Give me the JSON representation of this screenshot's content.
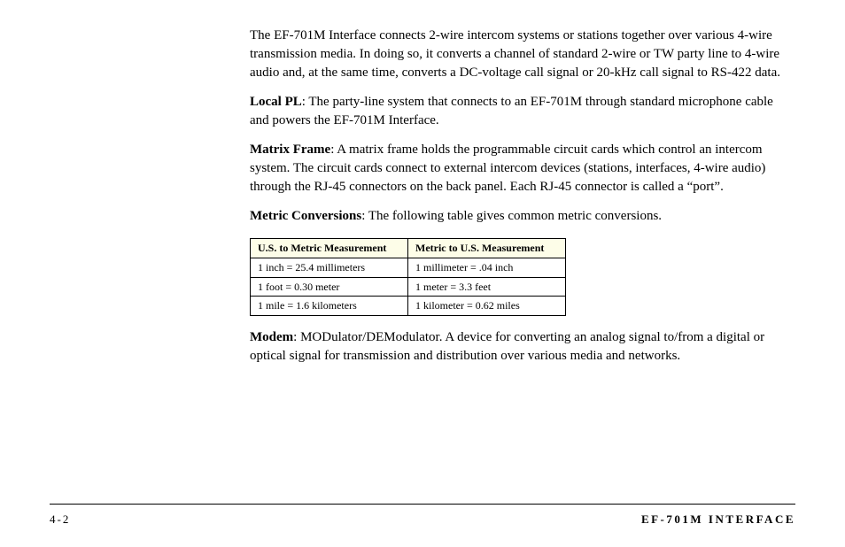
{
  "paragraphs": {
    "intro": "The EF-701M Interface connects 2-wire intercom systems or stations together over various 4-wire transmission media.  In doing so, it converts a channel of standard 2-wire or TW party line to 4-wire audio and, at the same time, converts a DC-voltage call signal or 20-kHz call signal to RS-422 data.",
    "localPL_label": "Local PL",
    "localPL_text": ": The party-line system that connects to an EF-701M through standard microphone cable and powers the EF-701M Interface.",
    "matrix_label": "Matrix Frame",
    "matrix_text": ": A matrix frame holds the programmable circuit cards which control an intercom system. The circuit cards connect to external intercom devices (stations, interfaces, 4-wire audio) through the RJ-45 connectors on the back panel. Each RJ-45 connector is called a “port”.",
    "metric_label": "Metric Conversions",
    "metric_text": ": The following table gives common metric conversions.",
    "modem_label": "Modem",
    "modem_text": ": MODulator/DEModulator. A device for converting an analog signal to/from a digital or optical signal for transmission and distribution over various media and networks."
  },
  "table": {
    "headers": [
      "U.S. to Metric Measurement",
      "Metric to U.S. Measurement"
    ],
    "rows": [
      [
        "1 inch = 25.4 millimeters",
        "1 millimeter = .04 inch"
      ],
      [
        "1 foot = 0.30 meter",
        "1 meter = 3.3 feet"
      ],
      [
        "1 mile = 1.6 kilometers",
        "1 kilometer = 0.62 miles"
      ]
    ],
    "header_bg": "#fdfde8",
    "border_color": "#000000",
    "font_size": 12
  },
  "footer": {
    "page": "4-2",
    "title": "EF-701M INTERFACE"
  },
  "style": {
    "body_font_size": 15,
    "body_color": "#000000",
    "background": "#ffffff"
  }
}
